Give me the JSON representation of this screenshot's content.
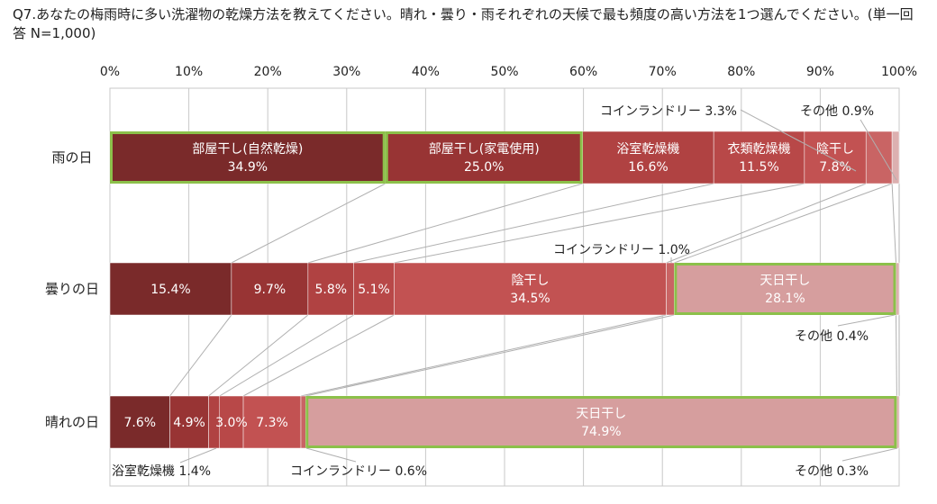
{
  "title": "Q7.あなたの梅雨時に多い洗濯物の乾燥方法を教えてください。晴れ・曇り・雨それぞれの天候で最も頻度の高い方法を1つ選んでください。(単一回答 N=1,000)",
  "colors": {
    "gridline": "#c8c8c8",
    "connector": "#b0b0b0",
    "highlight": "#8cc04a",
    "segments": [
      "#7a2a2a",
      "#983434",
      "#b04242",
      "#b84848",
      "#c25252",
      "#c96464",
      "#d69e9e",
      "#dcb0b0"
    ]
  },
  "chart_data": {
    "type": "bar",
    "stacked": true,
    "orientation": "horizontal",
    "categories": [
      "雨の日",
      "曇りの日",
      "晴れの日"
    ],
    "xlim": [
      0,
      100
    ],
    "xticks": [
      "0%",
      "10%",
      "20%",
      "30%",
      "40%",
      "50%",
      "60%",
      "70%",
      "80%",
      "90%",
      "100%"
    ],
    "grid": true,
    "series": [
      {
        "name": "部屋干し(自然乾燥)",
        "values": [
          34.9,
          15.4,
          7.6
        ]
      },
      {
        "name": "部屋干し(家電使用)",
        "values": [
          25.0,
          9.7,
          4.9
        ]
      },
      {
        "name": "浴室乾燥機",
        "values": [
          16.6,
          5.8,
          1.4
        ]
      },
      {
        "name": "衣類乾燥機",
        "values": [
          11.5,
          5.1,
          3.0
        ]
      },
      {
        "name": "陰干し",
        "values": [
          7.8,
          34.5,
          7.3
        ]
      },
      {
        "name": "コインランドリー",
        "values": [
          3.3,
          1.0,
          0.6
        ]
      },
      {
        "name": "天日干し",
        "values": [
          0,
          28.1,
          74.9
        ]
      },
      {
        "name": "その他",
        "values": [
          0.9,
          0.4,
          0.3
        ]
      }
    ],
    "segment_labels": [
      [
        {
          "name": "部屋干し(自然乾燥)",
          "value": "34.9%"
        },
        {
          "name": "部屋干し(家電使用)",
          "value": "25.0%"
        },
        {
          "name": "浴室乾燥機",
          "value": "16.6%"
        },
        {
          "name": "衣類乾燥機",
          "value": "11.5%"
        },
        {
          "name": "陰干し",
          "value": "7.8%"
        },
        null,
        null,
        null
      ],
      [
        {
          "name": "",
          "value": "15.4%"
        },
        {
          "name": "",
          "value": "9.7%"
        },
        {
          "name": "",
          "value": "5.8%"
        },
        {
          "name": "",
          "value": "5.1%"
        },
        {
          "name": "陰干し",
          "value": "34.5%"
        },
        null,
        {
          "name": "天日干し",
          "value": "28.1%"
        },
        null
      ],
      [
        {
          "name": "",
          "value": "7.6%"
        },
        {
          "name": "",
          "value": "4.9%"
        },
        null,
        {
          "name": "",
          "value": "3.0%"
        },
        {
          "name": "",
          "value": "7.3%"
        },
        null,
        {
          "name": "天日干し",
          "value": "74.9%"
        },
        null
      ]
    ],
    "highlighted": [
      [
        0,
        1
      ],
      [
        6
      ],
      [
        6
      ]
    ],
    "annotations": [
      {
        "row": 0,
        "series": 5,
        "text": "コインランドリー 3.3%"
      },
      {
        "row": 0,
        "series": 7,
        "text": "その他 0.9%"
      },
      {
        "row": 1,
        "series": 5,
        "text": "コインランドリー 1.0%"
      },
      {
        "row": 1,
        "series": 7,
        "text": "その他 0.4%"
      },
      {
        "row": 2,
        "series": 2,
        "text": "浴室乾燥機 1.4%"
      },
      {
        "row": 2,
        "series": 5,
        "text": "コインランドリー 0.6%"
      },
      {
        "row": 2,
        "series": 7,
        "text": "その他 0.3%"
      }
    ]
  }
}
